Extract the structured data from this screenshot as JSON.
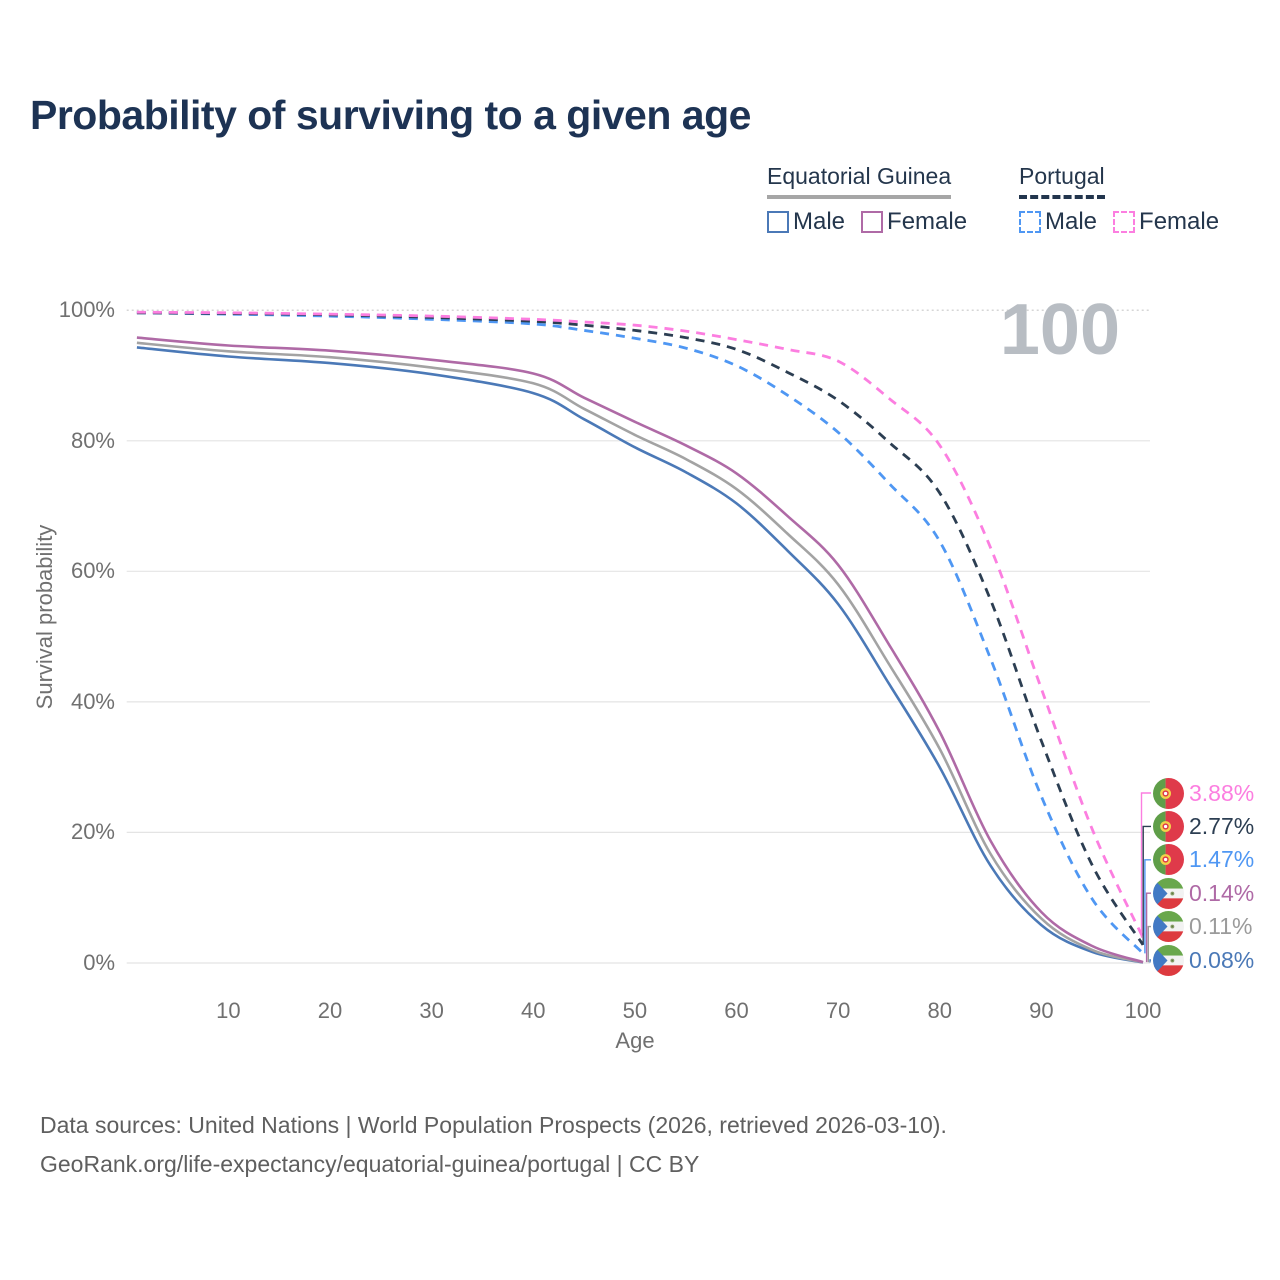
{
  "title": "Probability of surviving to a given age",
  "age_counter": "100",
  "legend": {
    "groups": [
      {
        "title": "Equatorial Guinea",
        "line_style": "solid",
        "underline_color": "#a6a6a6",
        "items": [
          {
            "label": "Male",
            "color": "#4b79b7"
          },
          {
            "label": "Female",
            "color": "#af6aa6"
          }
        ]
      },
      {
        "title": "Portugal",
        "line_style": "dashed",
        "underline_color": "#22354d",
        "items": [
          {
            "label": "Male",
            "color": "#4f97f3"
          },
          {
            "label": "Female",
            "color": "#fc7ee0"
          }
        ]
      }
    ]
  },
  "chart_data": {
    "type": "line",
    "title": "Probability of surviving to a given age",
    "xlabel": "Age",
    "ylabel": "Survival probability",
    "xlim": [
      0,
      100
    ],
    "ylim": [
      0,
      100
    ],
    "x_ticks": [
      10,
      20,
      30,
      40,
      50,
      60,
      70,
      80,
      90,
      100
    ],
    "y_ticks": [
      {
        "label": "0%",
        "value": 0
      },
      {
        "label": "20%",
        "value": 20
      },
      {
        "label": "40%",
        "value": 40
      },
      {
        "label": "60%",
        "value": 60
      },
      {
        "label": "80%",
        "value": 80
      },
      {
        "label": "100%",
        "value": 100
      }
    ],
    "grid": "horizontal-only",
    "legend_position": "top-right",
    "x": [
      1,
      10,
      20,
      30,
      40,
      45,
      50,
      55,
      60,
      65,
      70,
      75,
      80,
      85,
      90,
      95,
      100
    ],
    "series": [
      {
        "name": "Equatorial Guinea Male",
        "color": "#4b79b7",
        "dash": false,
        "end_value_pct": 0.08,
        "values": [
          94.3,
          92.9,
          91.9,
          90.2,
          87.3,
          83.3,
          79.0,
          75.2,
          70.4,
          63.2,
          55.0,
          42.8,
          30.0,
          14.9,
          5.8,
          1.7,
          0.08
        ]
      },
      {
        "name": "Equatorial Guinea Both sexes",
        "color": "#a3a3a3",
        "dash": false,
        "end_value_pct": 0.11,
        "values": [
          95.0,
          93.7,
          92.8,
          91.2,
          88.8,
          84.9,
          80.9,
          77.2,
          72.6,
          65.8,
          58.0,
          45.8,
          32.8,
          16.7,
          6.8,
          2.0,
          0.11
        ]
      },
      {
        "name": "Equatorial Guinea Female",
        "color": "#af6aa6",
        "dash": false,
        "end_value_pct": 0.14,
        "values": [
          95.8,
          94.6,
          93.8,
          92.4,
          90.3,
          86.6,
          82.9,
          79.3,
          75.0,
          68.5,
          61.0,
          48.8,
          35.4,
          18.7,
          7.8,
          2.6,
          0.14
        ]
      },
      {
        "name": "Portugal Male",
        "color": "#4f97f3",
        "dash": true,
        "end_value_pct": 1.47,
        "values": [
          99.6,
          99.4,
          99.1,
          98.6,
          97.9,
          96.9,
          95.7,
          94.2,
          91.5,
          87.0,
          81.3,
          73.5,
          64.6,
          46.6,
          25.5,
          9.8,
          1.47
        ]
      },
      {
        "name": "Portugal Both sexes",
        "color": "#2c3e52",
        "dash": true,
        "end_value_pct": 2.77,
        "values": [
          99.6,
          99.5,
          99.3,
          98.9,
          98.3,
          97.7,
          96.9,
          95.8,
          94.0,
          90.5,
          86.2,
          79.8,
          72.0,
          55.6,
          34.0,
          15.0,
          2.77
        ]
      },
      {
        "name": "Portugal Female",
        "color": "#fc7ee0",
        "dash": true,
        "end_value_pct": 3.88,
        "values": [
          99.7,
          99.6,
          99.4,
          99.1,
          98.6,
          98.2,
          97.7,
          96.8,
          95.5,
          94.0,
          92.2,
          86.5,
          79.3,
          63.6,
          42.0,
          20.5,
          3.88
        ]
      }
    ]
  },
  "end_labels": [
    {
      "value": "3.88%",
      "flag": "portugal",
      "color": "#fc7ee0"
    },
    {
      "value": "2.77%",
      "flag": "portugal",
      "color": "#2c3e52"
    },
    {
      "value": "1.47%",
      "flag": "portugal",
      "color": "#4f97f3"
    },
    {
      "value": "0.14%",
      "flag": "equatorial-guinea",
      "color": "#af6aa6"
    },
    {
      "value": "0.11%",
      "flag": "equatorial-guinea",
      "color": "#9b9b9b"
    },
    {
      "value": "0.08%",
      "flag": "equatorial-guinea",
      "color": "#4b79b7"
    }
  ],
  "footer": {
    "line1": "Data sources: United Nations | World Population Prospects (2026, retrieved 2026-03-10).",
    "line2": "GeoRank.org/life-expectancy/equatorial-guinea/portugal | CC BY"
  }
}
